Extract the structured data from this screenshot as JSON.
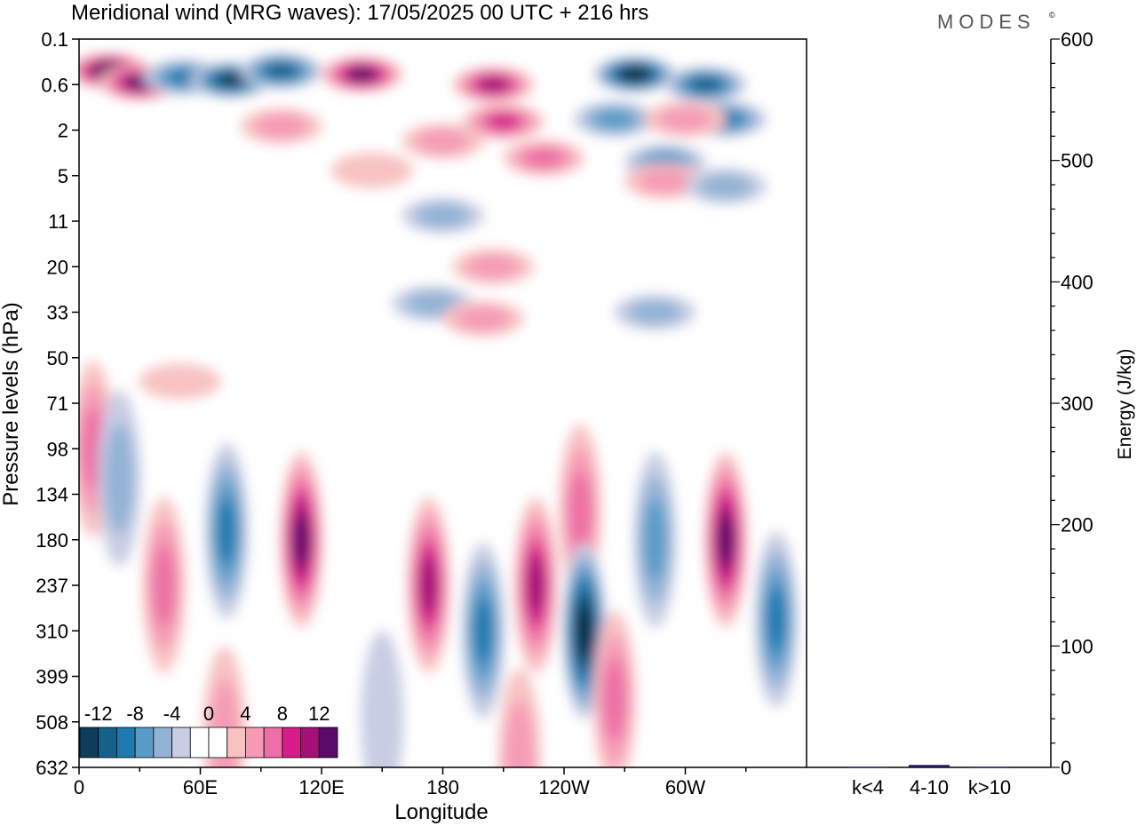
{
  "title": "Meridional wind (MRG waves):  17/05/2025  00 UTC  + 216 hrs",
  "logo": "MODES",
  "logo_mark": "©",
  "chart_data": [
    {
      "type": "heatmap",
      "title": "Meridional wind (MRG waves):  17/05/2025  00 UTC  + 216 hrs",
      "xlabel": "Longitude",
      "ylabel": "Pressure levels (hPa)",
      "x_ticks": [
        "0",
        "60E",
        "120E",
        "180",
        "120W",
        "60W"
      ],
      "y_ticks": [
        "0.1",
        "0.6",
        "2",
        "5",
        "11",
        "20",
        "33",
        "50",
        "71",
        "98",
        "134",
        "180",
        "237",
        "310",
        "399",
        "508",
        "632"
      ],
      "colorbar": {
        "labels": [
          "-12",
          "-8",
          "-4",
          "0",
          "4",
          "8",
          "12"
        ],
        "levels": [
          -14,
          -12,
          -10,
          -8,
          -6,
          -4,
          -2,
          0,
          2,
          4,
          6,
          8,
          10,
          12,
          14
        ],
        "colors": [
          "#0d3d5a",
          "#14628c",
          "#1f7ab0",
          "#5a9cc8",
          "#93b3d6",
          "#c8cde3",
          "#ffffff",
          "#ffffff",
          "#f8c2c2",
          "#f59bb5",
          "#ec6fa5",
          "#d61d8b",
          "#a31178",
          "#5a0a6a"
        ]
      },
      "features": [
        {
          "lon": 15,
          "lev": 0.35,
          "value": 14
        },
        {
          "lon": 30,
          "lev": 0.55,
          "value": 12
        },
        {
          "lon": 52,
          "lev": 0.45,
          "value": -8
        },
        {
          "lon": 75,
          "lev": 0.5,
          "value": -12
        },
        {
          "lon": 100,
          "lev": 0.35,
          "value": -10
        },
        {
          "lon": 140,
          "lev": 0.4,
          "value": 12
        },
        {
          "lon": 100,
          "lev": 1.8,
          "value": 4
        },
        {
          "lon": 145,
          "lev": 4.5,
          "value": 2
        },
        {
          "lon": 205,
          "lev": 0.6,
          "value": 10
        },
        {
          "lon": 210,
          "lev": 1.6,
          "value": 8
        },
        {
          "lon": 230,
          "lev": 3.5,
          "value": 6
        },
        {
          "lon": 180,
          "lev": 2.5,
          "value": 4
        },
        {
          "lon": 180,
          "lev": 10,
          "value": -4
        },
        {
          "lon": 275,
          "lev": 0.4,
          "value": -14
        },
        {
          "lon": 310,
          "lev": 0.6,
          "value": -10
        },
        {
          "lon": 320,
          "lev": 1.5,
          "value": -8
        },
        {
          "lon": 265,
          "lev": 1.5,
          "value": -6
        },
        {
          "lon": 300,
          "lev": 1.5,
          "value": 4
        },
        {
          "lon": 290,
          "lev": 3.8,
          "value": -6
        },
        {
          "lon": 290,
          "lev": 5.5,
          "value": 4
        },
        {
          "lon": 320,
          "lev": 6,
          "value": -4
        },
        {
          "lon": 205,
          "lev": 20,
          "value": 4
        },
        {
          "lon": 175,
          "lev": 30,
          "value": -4
        },
        {
          "lon": 200,
          "lev": 35,
          "value": 4
        },
        {
          "lon": 285,
          "lev": 33,
          "value": -4
        },
        {
          "lon": 50,
          "lev": 60,
          "value": 2
        },
        {
          "lon": 7,
          "lev": 98,
          "value": 6
        },
        {
          "lon": 20,
          "lev": 120,
          "value": -4
        },
        {
          "lon": 73,
          "lev": 170,
          "value": -8
        },
        {
          "lon": 42,
          "lev": 237,
          "value": 6
        },
        {
          "lon": 110,
          "lev": 180,
          "value": 12
        },
        {
          "lon": 173,
          "lev": 237,
          "value": 10
        },
        {
          "lon": 200,
          "lev": 310,
          "value": -8
        },
        {
          "lon": 226,
          "lev": 237,
          "value": 10
        },
        {
          "lon": 248,
          "lev": 150,
          "value": 6
        },
        {
          "lon": 250,
          "lev": 310,
          "value": -14
        },
        {
          "lon": 265,
          "lev": 450,
          "value": 6
        },
        {
          "lon": 285,
          "lev": 180,
          "value": -6
        },
        {
          "lon": 320,
          "lev": 180,
          "value": 12
        },
        {
          "lon": 345,
          "lev": 290,
          "value": -8
        },
        {
          "lon": 72,
          "lev": 540,
          "value": 4
        },
        {
          "lon": 218,
          "lev": 600,
          "value": 4
        },
        {
          "lon": 150,
          "lev": 500,
          "value": -2
        }
      ]
    },
    {
      "type": "bar",
      "title": "",
      "xlabel": "",
      "ylabel": "Energy (J/kg)",
      "categories": [
        "k<4",
        "4-10",
        "k>10"
      ],
      "values": [
        0.5,
        2,
        0.5
      ],
      "ylim": [
        0,
        600
      ],
      "y_ticks": [
        "0",
        "100",
        "200",
        "300",
        "400",
        "500",
        "600"
      ],
      "bar_color": "#1a1a5e"
    }
  ]
}
